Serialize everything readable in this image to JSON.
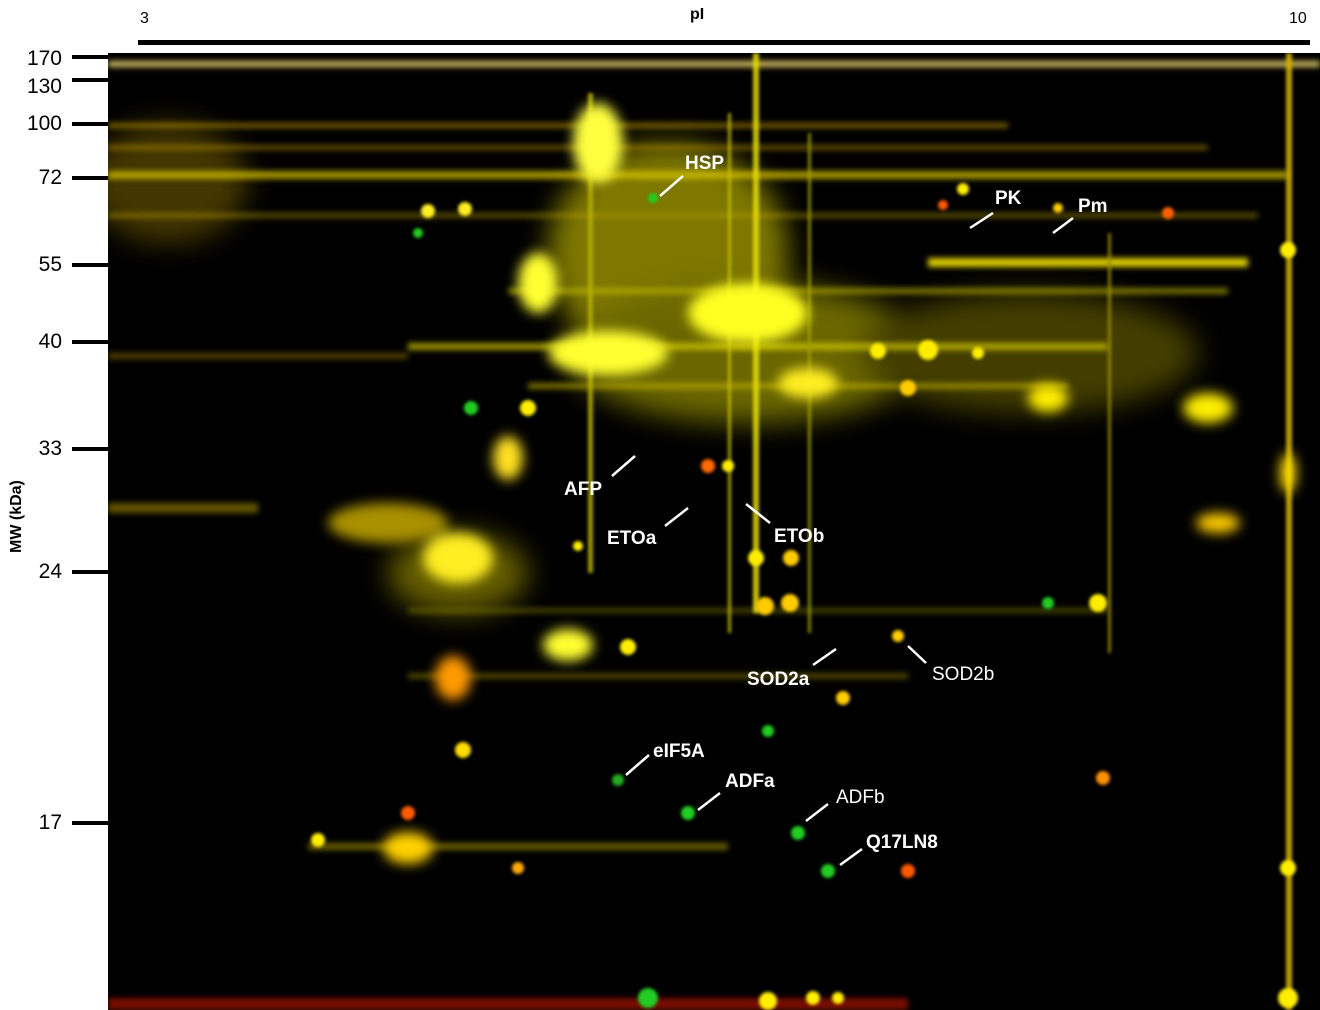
{
  "ph_axis": {
    "left_label": "3",
    "right_label": "10",
    "title": "pI"
  },
  "mw_axis": {
    "title": "MW (kDa)",
    "ticks": [
      "170",
      "130",
      "100",
      "72",
      "55",
      "40",
      "33",
      "24",
      "17"
    ]
  },
  "protein_labels": [
    {
      "id": "hsp",
      "text": "HSP",
      "weight": "bold"
    },
    {
      "id": "pk",
      "text": "PK",
      "weight": "bold"
    },
    {
      "id": "pm",
      "text": "Pm",
      "weight": "bold"
    },
    {
      "id": "afp",
      "text": "AFP",
      "weight": "bold"
    },
    {
      "id": "etoa",
      "text": "ETOa",
      "weight": "bold"
    },
    {
      "id": "etob",
      "text": "ETOb",
      "weight": "bold"
    },
    {
      "id": "sod2a",
      "text": "SOD2a",
      "weight": "bold"
    },
    {
      "id": "sod2b",
      "text": "SOD2b",
      "weight": "normal"
    },
    {
      "id": "eif5a",
      "text": "eIF5A",
      "weight": "bold"
    },
    {
      "id": "adfa",
      "text": "ADFa",
      "weight": "bold"
    },
    {
      "id": "adfb",
      "text": "ADFb",
      "weight": "normal"
    },
    {
      "id": "q17ln8",
      "text": "Q17LN8",
      "weight": "bold"
    }
  ],
  "colors": {
    "background": "#000000",
    "spot_yellow": "#ffff33",
    "spot_green": "#22cc22",
    "spot_red": "#ff3300",
    "label": "#ffffff"
  }
}
